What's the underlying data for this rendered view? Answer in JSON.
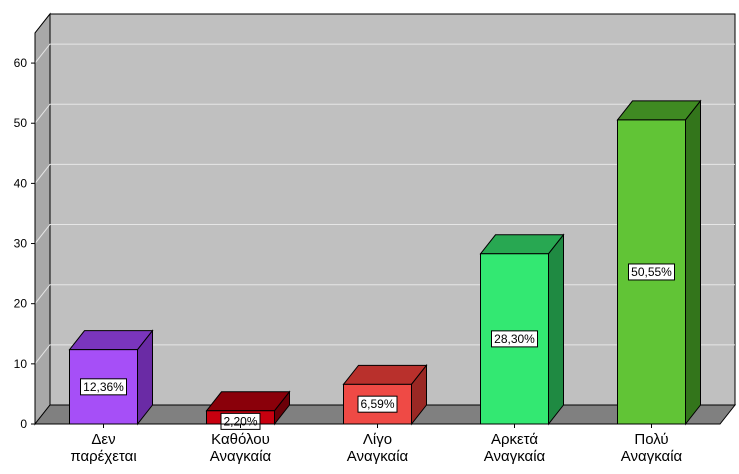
{
  "chart_data": {
    "type": "bar",
    "categories": [
      [
        "Δεν",
        "παρέχεται"
      ],
      [
        "Καθόλου",
        "Αναγκαία"
      ],
      [
        "Λίγο",
        "Αναγκαία"
      ],
      [
        "Αρκετά",
        "Αναγκαία"
      ],
      [
        "Πολύ",
        "Αναγκαία"
      ]
    ],
    "values": [
      12.36,
      2.2,
      6.59,
      28.3,
      50.55
    ],
    "data_labels": [
      "12,36%",
      "2,20%",
      "6,59%",
      "28,30%",
      "50,55%"
    ],
    "yticks": [
      0,
      10,
      20,
      30,
      40,
      50,
      60
    ],
    "ylim": [
      0,
      65
    ],
    "grid": true,
    "style": "3d",
    "colors": [
      {
        "front": "#a64ff7",
        "top": "#7a35bd",
        "side": "#6a2ba5"
      },
      {
        "front": "#c8000f",
        "top": "#8a000a",
        "side": "#6c0008"
      },
      {
        "front": "#ef4a45",
        "top": "#b9302c",
        "side": "#9a2824"
      },
      {
        "front": "#33e872",
        "top": "#28a852",
        "side": "#1f8a42"
      },
      {
        "front": "#61c436",
        "top": "#3f8a22",
        "side": "#33751b"
      }
    ],
    "background": {
      "wall": "#c0c0c0",
      "floor": "#808080",
      "left_wall": "#a8a8a8",
      "gridline": "#e6e6e6"
    }
  }
}
